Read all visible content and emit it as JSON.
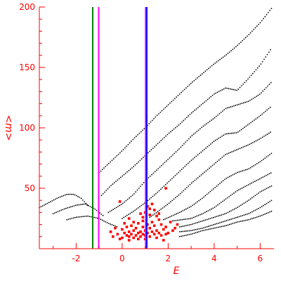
{
  "chart_data": {
    "type": "scatter",
    "xlabel": "E",
    "ylabel": "<m>",
    "xlim": [
      -3.6,
      6.6
    ],
    "ylim": [
      0,
      200
    ],
    "x_ticks": [
      -2,
      0,
      2,
      4,
      6
    ],
    "x_tick_labels": [
      "-2",
      "0",
      "2",
      "4",
      "6"
    ],
    "y_ticks": [
      50,
      100,
      150,
      200
    ],
    "y_tick_labels": [
      "50",
      "100",
      "150",
      "200"
    ],
    "grid": false,
    "legend": false,
    "axis_color": "#ff0000",
    "vertical_lines": [
      {
        "x": -1.28,
        "color": "#008000"
      },
      {
        "x": -1.02,
        "color": "#ff00ff"
      },
      {
        "x": 1.02,
        "color": "#ff00ff"
      },
      {
        "x": 1.07,
        "color": "#0000ff"
      }
    ],
    "series": [
      {
        "color": "#000000",
        "marker": "small-dot",
        "bands": [
          {
            "x_start": -3.6,
            "x_end": -1.5,
            "points": [
              [
                -3.6,
                34
              ],
              [
                -3.2,
                38
              ],
              [
                -2.8,
                42
              ],
              [
                -2.4,
                45
              ],
              [
                -2.1,
                45
              ],
              [
                -1.8,
                42
              ],
              [
                -1.5,
                36
              ]
            ]
          },
          {
            "x_start": -3.0,
            "x_end": -0.8,
            "points": [
              [
                -3.0,
                29
              ],
              [
                -2.5,
                33
              ],
              [
                -2.0,
                36
              ],
              [
                -1.6,
                37
              ],
              [
                -1.2,
                33
              ],
              [
                -0.8,
                27
              ]
            ]
          },
          {
            "x_start": -2.4,
            "x_end": -0.2,
            "points": [
              [
                -2.4,
                24
              ],
              [
                -2.0,
                26
              ],
              [
                -1.5,
                27
              ],
              [
                -1.0,
                25
              ],
              [
                -0.6,
                21
              ],
              [
                -0.2,
                18
              ]
            ]
          },
          {
            "x_start": -1.0,
            "x_end": 6.5,
            "points": [
              [
                -1.0,
                63
              ],
              [
                -0.5,
                72
              ],
              [
                0.0,
                81
              ],
              [
                0.5,
                91
              ],
              [
                1.0,
                100
              ],
              [
                1.5,
                110
              ],
              [
                2.0,
                119
              ],
              [
                2.5,
                128
              ],
              [
                3.0,
                137
              ],
              [
                3.5,
                145
              ],
              [
                4.0,
                153
              ],
              [
                4.5,
                160
              ],
              [
                5.0,
                168
              ],
              [
                5.5,
                177
              ],
              [
                6.0,
                187
              ],
              [
                6.5,
                199
              ]
            ]
          },
          {
            "x_start": -0.9,
            "x_end": 6.5,
            "points": [
              [
                -0.9,
                44
              ],
              [
                -0.5,
                52
              ],
              [
                0.0,
                60
              ],
              [
                0.5,
                68
              ],
              [
                1.0,
                77
              ],
              [
                1.5,
                86
              ],
              [
                2.0,
                95
              ],
              [
                2.5,
                103
              ],
              [
                3.0,
                112
              ],
              [
                3.5,
                120
              ],
              [
                4.0,
                128
              ],
              [
                4.5,
                133
              ],
              [
                5.0,
                131
              ],
              [
                5.5,
                141
              ],
              [
                6.0,
                152
              ],
              [
                6.5,
                166
              ]
            ]
          },
          {
            "x_start": -0.6,
            "x_end": 6.5,
            "points": [
              [
                -0.6,
                30
              ],
              [
                0.0,
                37
              ],
              [
                0.5,
                45
              ],
              [
                1.0,
                56
              ],
              [
                1.5,
                65
              ],
              [
                2.0,
                74
              ],
              [
                2.5,
                83
              ],
              [
                3.0,
                93
              ],
              [
                3.5,
                101
              ],
              [
                4.0,
                108
              ],
              [
                4.5,
                116
              ],
              [
                5.0,
                119
              ],
              [
                5.5,
                122
              ],
              [
                6.0,
                128
              ],
              [
                6.5,
                138
              ]
            ]
          },
          {
            "x_start": 0.0,
            "x_end": 6.5,
            "points": [
              [
                0.0,
                25
              ],
              [
                0.5,
                31
              ],
              [
                1.0,
                38
              ],
              [
                1.5,
                46
              ],
              [
                2.0,
                55
              ],
              [
                2.5,
                64
              ],
              [
                3.0,
                73
              ],
              [
                3.5,
                81
              ],
              [
                4.0,
                89
              ],
              [
                4.5,
                95
              ],
              [
                5.0,
                96
              ],
              [
                5.5,
                103
              ],
              [
                6.0,
                110
              ],
              [
                6.5,
                118
              ]
            ]
          },
          {
            "x_start": 1.2,
            "x_end": 6.5,
            "points": [
              [
                1.2,
                26
              ],
              [
                1.5,
                30
              ],
              [
                2.0,
                37
              ],
              [
                2.5,
                45
              ],
              [
                3.0,
                54
              ],
              [
                3.5,
                62
              ],
              [
                4.0,
                70
              ],
              [
                4.5,
                78
              ],
              [
                5.0,
                82
              ],
              [
                5.5,
                86
              ],
              [
                6.0,
                91
              ],
              [
                6.5,
                97
              ]
            ]
          },
          {
            "x_start": 1.8,
            "x_end": 6.5,
            "points": [
              [
                1.8,
                24
              ],
              [
                2.5,
                30
              ],
              [
                3.0,
                35
              ],
              [
                3.5,
                42
              ],
              [
                4.0,
                50
              ],
              [
                4.5,
                58
              ],
              [
                5.0,
                63
              ],
              [
                5.5,
                66
              ],
              [
                6.0,
                72
              ],
              [
                6.5,
                79
              ]
            ]
          },
          {
            "x_start": 2.2,
            "x_end": 6.5,
            "points": [
              [
                2.2,
                23
              ],
              [
                3.0,
                25
              ],
              [
                3.5,
                29
              ],
              [
                4.0,
                34
              ],
              [
                4.5,
                41
              ],
              [
                5.0,
                48
              ],
              [
                5.5,
                53
              ],
              [
                6.0,
                58
              ],
              [
                6.5,
                63
              ]
            ]
          },
          {
            "x_start": 2.5,
            "x_end": 6.5,
            "points": [
              [
                2.5,
                18
              ],
              [
                3.0,
                20
              ],
              [
                3.5,
                23
              ],
              [
                4.0,
                26
              ],
              [
                4.5,
                29
              ],
              [
                5.0,
                34
              ],
              [
                5.5,
                40
              ],
              [
                6.0,
                47
              ],
              [
                6.5,
                52
              ]
            ]
          },
          {
            "x_start": 2.5,
            "x_end": 6.5,
            "points": [
              [
                2.5,
                14
              ],
              [
                3.0,
                15
              ],
              [
                3.5,
                17
              ],
              [
                4.0,
                20
              ],
              [
                4.5,
                23
              ],
              [
                5.0,
                26
              ],
              [
                5.5,
                29
              ],
              [
                6.0,
                34
              ],
              [
                6.5,
                40
              ]
            ]
          },
          {
            "x_start": 2.5,
            "x_end": 6.5,
            "points": [
              [
                2.5,
                10
              ],
              [
                3.0,
                12
              ],
              [
                3.5,
                15
              ],
              [
                4.0,
                17
              ],
              [
                4.5,
                19
              ],
              [
                5.0,
                22
              ],
              [
                5.5,
                24
              ],
              [
                6.0,
                27
              ],
              [
                6.5,
                31
              ]
            ]
          }
        ]
      },
      {
        "color": "#ff0000",
        "marker": "square",
        "points": [
          [
            1.0,
            30
          ],
          [
            0.8,
            29
          ],
          [
            1.2,
            28
          ],
          [
            1.5,
            27
          ],
          [
            0.3,
            25
          ],
          [
            1.6,
            24
          ],
          [
            0.9,
            23
          ],
          [
            1.3,
            22
          ],
          [
            2.1,
            22
          ],
          [
            0.1,
            21
          ],
          [
            0.7,
            21
          ],
          [
            1.1,
            20
          ],
          [
            1.7,
            20
          ],
          [
            2.4,
            20
          ],
          [
            0.4,
            19
          ],
          [
            1.4,
            19
          ],
          [
            0.2,
            18
          ],
          [
            0.9,
            18
          ],
          [
            1.9,
            18
          ],
          [
            -0.3,
            17
          ],
          [
            0.6,
            17
          ],
          [
            1.2,
            17
          ],
          [
            1.8,
            16
          ],
          [
            0.0,
            16
          ],
          [
            0.5,
            15
          ],
          [
            1.0,
            15
          ],
          [
            1.5,
            15
          ],
          [
            2.2,
            15
          ],
          [
            -0.5,
            14
          ],
          [
            0.3,
            14
          ],
          [
            0.8,
            14
          ],
          [
            1.3,
            14
          ],
          [
            1.6,
            13
          ],
          [
            0.1,
            13
          ],
          [
            0.7,
            13
          ],
          [
            1.1,
            13
          ],
          [
            1.9,
            12
          ],
          [
            -0.2,
            12
          ],
          [
            0.4,
            12
          ],
          [
            0.9,
            12
          ],
          [
            1.4,
            12
          ],
          [
            0.2,
            11
          ],
          [
            0.6,
            11
          ],
          [
            1.0,
            11
          ],
          [
            1.7,
            11
          ],
          [
            -0.4,
            10
          ],
          [
            0.3,
            10
          ],
          [
            0.8,
            10
          ],
          [
            1.2,
            10
          ],
          [
            0.0,
            9
          ],
          [
            0.5,
            9
          ],
          [
            1.5,
            9
          ],
          [
            -0.1,
            8
          ],
          [
            0.7,
            8
          ],
          [
            1.0,
            8
          ],
          [
            0.3,
            7
          ],
          [
            1.8,
            7
          ],
          [
            2.0,
            13
          ],
          [
            2.3,
            17
          ],
          [
            1.4,
            32
          ],
          [
            1.1,
            35
          ],
          [
            1.3,
            37
          ],
          [
            1.9,
            50
          ],
          [
            -0.1,
            39
          ],
          [
            0.9,
            26
          ],
          [
            1.6,
            29
          ],
          [
            0.5,
            22
          ],
          [
            1.2,
            33
          ]
        ]
      }
    ]
  }
}
